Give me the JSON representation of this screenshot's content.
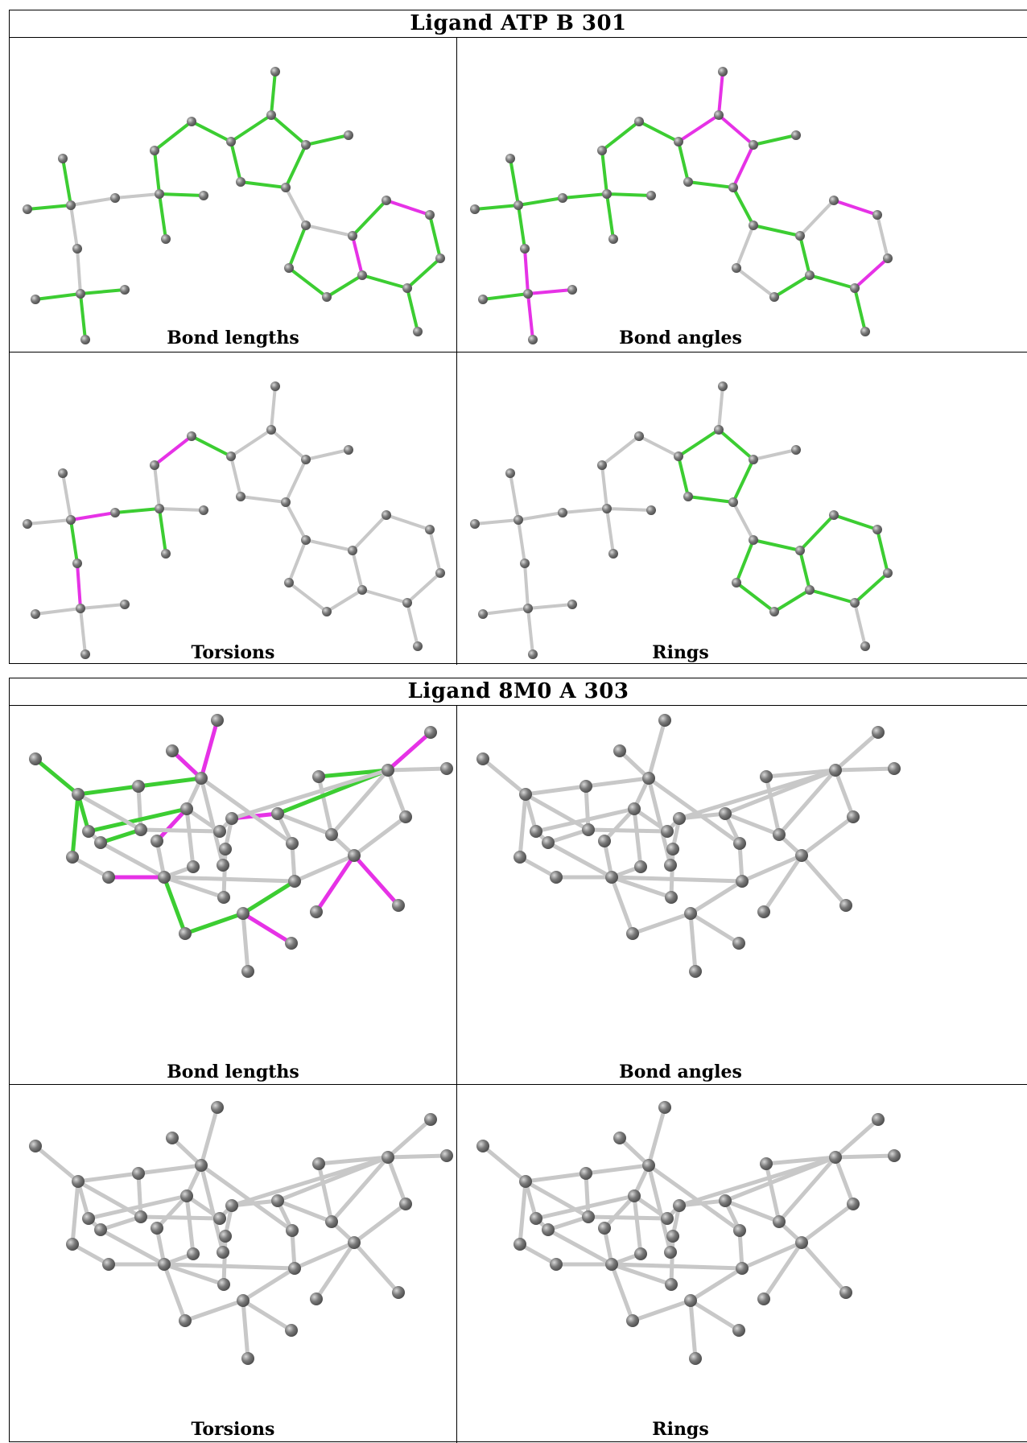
{
  "ligands": [
    {
      "title": "Ligand ATP B 301",
      "panels": [
        {
          "caption": "Bond lengths",
          "highlights": {
            "green": [
              [
                0,
                1
              ],
              [
                1,
                2
              ],
              [
                3,
                4
              ],
              [
                1,
                3
              ],
              [
                5,
                6
              ],
              [
                6,
                7
              ],
              [
                7,
                8
              ],
              [
                8,
                9
              ],
              [
                8,
                10
              ],
              [
                10,
                11
              ],
              [
                9,
                11
              ],
              [
                6,
                12
              ],
              [
                12,
                13
              ],
              [
                13,
                14
              ],
              [
                12,
                15
              ],
              [
                15,
                16
              ],
              [
                16,
                17
              ],
              [
                17,
                18
              ],
              [
                18,
                19
              ],
              [
                19,
                14
              ],
              [
                19,
                20
              ],
              [
                13,
                21
              ],
              [
                21,
                22
              ],
              [
                22,
                23
              ],
              [
                23,
                17
              ],
              [
                14,
                24
              ],
              [
                24,
                23
              ]
            ],
            "magenta": [
              [
                14,
                24
              ],
              [
                16,
                17
              ]
            ]
          }
        },
        {
          "caption": "Bond angles",
          "highlights": {
            "green": [
              [
                0,
                1
              ],
              [
                1,
                2
              ],
              [
                3,
                4
              ],
              [
                1,
                3
              ],
              [
                5,
                6
              ],
              [
                6,
                7
              ],
              [
                7,
                8
              ],
              [
                8,
                9
              ],
              [
                8,
                10
              ],
              [
                10,
                11
              ],
              [
                6,
                12
              ],
              [
                12,
                13
              ],
              [
                13,
                14
              ],
              [
                12,
                15
              ],
              [
                15,
                16
              ],
              [
                16,
                17
              ],
              [
                17,
                18
              ],
              [
                18,
                19
              ],
              [
                19,
                20
              ],
              [
                13,
                21
              ],
              [
                21,
                22
              ],
              [
                22,
                23
              ],
              [
                14,
                24
              ],
              [
                1,
                5
              ]
            ],
            "magenta": [
              [
                3,
                25
              ],
              [
                25,
                4
              ],
              [
                9,
                11
              ],
              [
                24,
                23
              ],
              [
                23,
                17
              ],
              [
                18,
                17
              ]
            ]
          }
        },
        {
          "caption": "Torsions",
          "highlights": {
            "green": [
              [
                1,
                3
              ],
              [
                5,
                6
              ],
              [
                7,
                8
              ]
            ],
            "magenta": [
              [
                1,
                5
              ],
              [
                6,
                7
              ],
              [
                3,
                25
              ]
            ]
          }
        },
        {
          "caption": "Rings",
          "highlights": {
            "green": [
              [
                7,
                8
              ],
              [
                8,
                9
              ],
              [
                9,
                11
              ],
              [
                11,
                10
              ],
              [
                10,
                7
              ],
              [
                14,
                24
              ],
              [
                24,
                23
              ],
              [
                23,
                17
              ],
              [
                17,
                18
              ],
              [
                18,
                19
              ],
              [
                19,
                14
              ],
              [
                13,
                14
              ],
              [
                13,
                21
              ],
              [
                21,
                22
              ],
              [
                22,
                23
              ]
            ],
            "magenta": []
          }
        }
      ]
    },
    {
      "title": "Ligand 8M0 A 303",
      "panels": [
        {
          "caption": "Bond lengths"
        },
        {
          "caption": "Bond angles"
        },
        {
          "caption": "Torsions"
        },
        {
          "caption": "Rings"
        }
      ]
    }
  ],
  "colors": {
    "atom": "#7a7a7a",
    "bond": "#c8c8c8",
    "green": "#3ccd32",
    "magenta": "#e632e6",
    "border": "#000000"
  }
}
